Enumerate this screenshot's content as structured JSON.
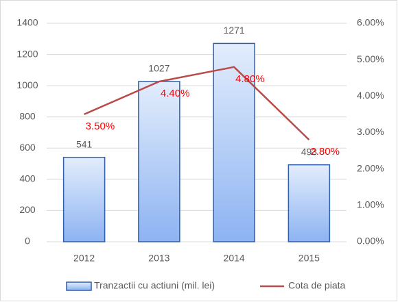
{
  "chart_data": {
    "type": "bar",
    "categories": [
      "2012",
      "2013",
      "2014",
      "2015"
    ],
    "series": [
      {
        "name": "Tranzactii cu actiuni (mil. lei)",
        "type": "bar",
        "color": "#2f5fa8",
        "values": [
          541,
          1027,
          1271,
          493
        ]
      },
      {
        "name": "Cota de piata",
        "type": "line",
        "axis": "y2",
        "color": "#b94a48",
        "values": [
          3.5,
          4.4,
          4.8,
          2.8
        ],
        "value_labels": [
          "3.50%",
          "4.40%",
          "4.80%",
          "2.80%"
        ]
      }
    ],
    "ylim": [
      0,
      1400
    ],
    "yticks": [
      0,
      200,
      400,
      600,
      800,
      1000,
      1200,
      1400
    ],
    "y2lim": [
      0,
      6
    ],
    "y2ticks": [
      {
        "value": 0,
        "label": "0.00%"
      },
      {
        "value": 1,
        "label": "1.00%"
      },
      {
        "value": 2,
        "label": "2.00%"
      },
      {
        "value": 3,
        "label": "3.00%"
      },
      {
        "value": 4,
        "label": "4.00%"
      },
      {
        "value": 5,
        "label": "5.00%"
      },
      {
        "value": 6,
        "label": "6.00%"
      }
    ],
    "grid": true,
    "legend": "bottom"
  }
}
